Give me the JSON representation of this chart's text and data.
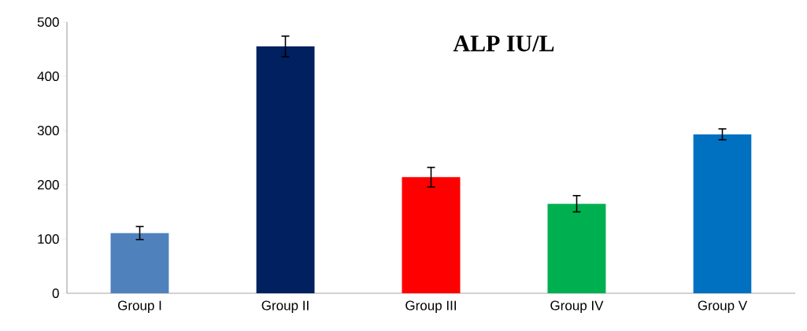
{
  "chart_data": {
    "type": "bar",
    "title": "ALP  IU/L",
    "categories": [
      "Group I",
      "Group II",
      "Group III",
      "Group IV",
      "Group V"
    ],
    "values": [
      111,
      455,
      214,
      165,
      293
    ],
    "colors": [
      "#4f81bd",
      "#002060",
      "#ff0000",
      "#00b050",
      "#0070c0"
    ],
    "errors": [
      12,
      19,
      18,
      15,
      10
    ],
    "ylim": [
      0,
      500
    ],
    "yticks": [
      0,
      100,
      200,
      300,
      400,
      500
    ],
    "grid": false
  }
}
